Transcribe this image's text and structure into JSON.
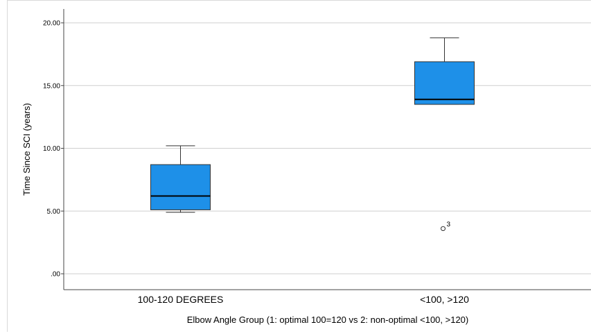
{
  "chart_data": {
    "type": "boxplot",
    "title": "",
    "xlabel": "Elbow Angle Group (1: optimal 100=120 vs 2: non-optimal <100, >120)",
    "ylabel": "Time Since SCI (years)",
    "ylim": [
      0,
      21.3
    ],
    "yticks": [
      0,
      5,
      10,
      15,
      20
    ],
    "ytick_labels": [
      ".00",
      "5.00",
      "10.00",
      "15.00",
      "20.00"
    ],
    "grid": true,
    "box_color": "#1e90e8",
    "categories": [
      "100-120 DEGREES",
      "<100, >120"
    ],
    "boxes": [
      {
        "whisker_low": 4.9,
        "q1": 5.1,
        "median": 6.2,
        "q3": 8.7,
        "whisker_high": 10.2,
        "outliers": []
      },
      {
        "whisker_low": 13.5,
        "q1": 13.5,
        "median": 13.9,
        "q3": 16.9,
        "whisker_high": 18.8,
        "outliers": [
          {
            "value": 3.6,
            "label": "3"
          }
        ]
      }
    ]
  }
}
